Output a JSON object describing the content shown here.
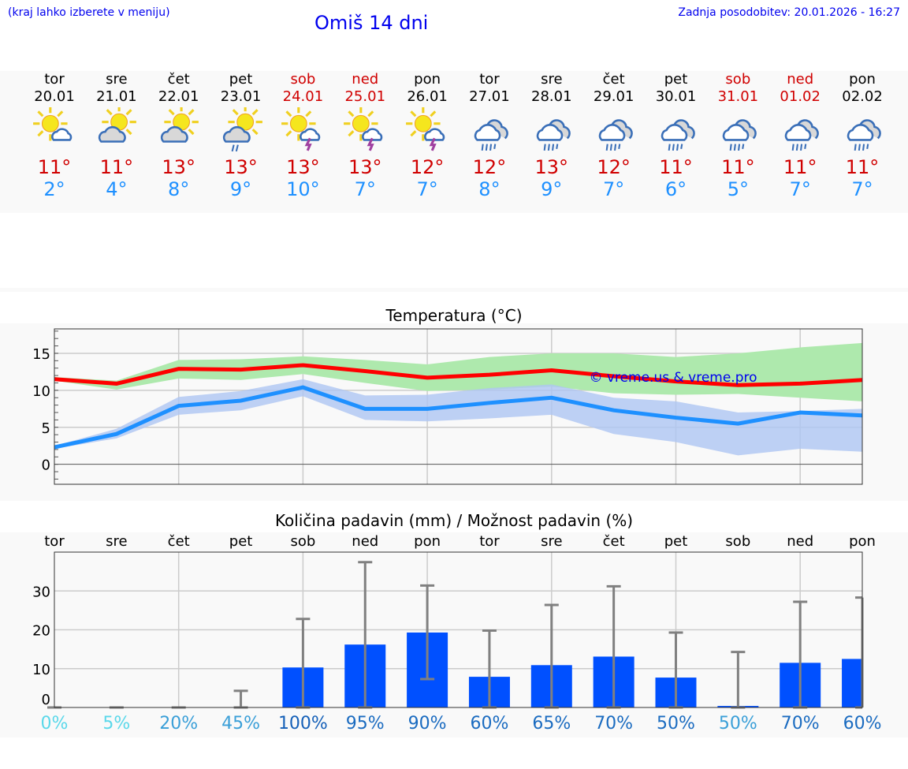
{
  "header": {
    "hint": "(kraj lahko izberete v meniju)",
    "title": "Omiš 14 dni",
    "updated": "Zadnja posodobitev: 20.01.2026 - 16:27"
  },
  "days": [
    {
      "name": "tor",
      "date": "20.01",
      "icon": "sun-cloud",
      "max": "11°",
      "min": "2°",
      "weekend": false
    },
    {
      "name": "sre",
      "date": "21.01",
      "icon": "sun-cloud",
      "max": "11°",
      "min": "4°",
      "weekend": false
    },
    {
      "name": "čet",
      "date": "22.01",
      "icon": "sun-cloud",
      "max": "13°",
      "min": "8°",
      "weekend": false
    },
    {
      "name": "pet",
      "date": "23.01",
      "icon": "sun-cloud-rain",
      "max": "13°",
      "min": "9°",
      "weekend": false
    },
    {
      "name": "sob",
      "date": "24.01",
      "icon": "sun-cloud-thunder",
      "max": "13°",
      "min": "10°",
      "weekend": true
    },
    {
      "name": "ned",
      "date": "25.01",
      "icon": "sun-cloud-thunder",
      "max": "13°",
      "min": "7°",
      "weekend": true
    },
    {
      "name": "pon",
      "date": "26.01",
      "icon": "sun-cloud-thunder",
      "max": "12°",
      "min": "7°",
      "weekend": false
    },
    {
      "name": "tor",
      "date": "27.01",
      "icon": "cloud-rain",
      "max": "12°",
      "min": "8°",
      "weekend": false
    },
    {
      "name": "sre",
      "date": "28.01",
      "icon": "cloud-rain",
      "max": "13°",
      "min": "9°",
      "weekend": false
    },
    {
      "name": "čet",
      "date": "29.01",
      "icon": "cloud-rain",
      "max": "12°",
      "min": "7°",
      "weekend": false
    },
    {
      "name": "pet",
      "date": "30.01",
      "icon": "cloud-rain",
      "max": "11°",
      "min": "6°",
      "weekend": false
    },
    {
      "name": "sob",
      "date": "31.01",
      "icon": "cloud-rain",
      "max": "11°",
      "min": "5°",
      "weekend": true
    },
    {
      "name": "ned",
      "date": "01.02",
      "icon": "cloud-rain",
      "max": "11°",
      "min": "7°",
      "weekend": true
    },
    {
      "name": "pon",
      "date": "02.02",
      "icon": "cloud-rain",
      "max": "11°",
      "min": "7°",
      "weekend": false
    }
  ],
  "colors": {
    "weekend": "#d00000",
    "weekday": "#000000",
    "max_line": "#ff0000",
    "min_line": "#1e90ff",
    "max_band": "#aee9ad",
    "min_band": "#aec6f2",
    "bar": "#0050ff",
    "error": "#808080"
  },
  "chart_data": [
    {
      "type": "line",
      "title": "Temperatura (°C)",
      "watermark": "© vreme.us & vreme.pro",
      "ylim": [
        -2.7,
        18.3
      ],
      "yticks": [
        0,
        5,
        10,
        15
      ],
      "series": [
        {
          "name": "max",
          "values": [
            11.5,
            10.9,
            12.9,
            12.8,
            13.4,
            12.6,
            11.7,
            12.1,
            12.7,
            11.9,
            11.2,
            10.7,
            10.9,
            11.4
          ],
          "band_low": [
            11.3,
            10.1,
            11.6,
            11.4,
            12.2,
            11.0,
            9.9,
            10.1,
            10.5,
            9.6,
            9.4,
            9.5,
            9.0,
            8.5
          ],
          "band_high": [
            11.8,
            11.3,
            14.1,
            14.2,
            14.6,
            14.1,
            13.5,
            14.5,
            15.0,
            15.0,
            14.5,
            15.0,
            15.8,
            16.4
          ]
        },
        {
          "name": "min",
          "values": [
            2.3,
            4.1,
            7.9,
            8.6,
            10.4,
            7.5,
            7.5,
            8.3,
            9.0,
            7.3,
            6.3,
            5.5,
            7.0,
            6.6
          ],
          "band_low": [
            2.1,
            3.5,
            6.7,
            7.3,
            9.2,
            6.0,
            5.8,
            6.2,
            6.7,
            4.1,
            3.0,
            1.2,
            2.1,
            1.7
          ],
          "band_high": [
            2.5,
            4.8,
            9.1,
            9.9,
            11.5,
            9.3,
            9.4,
            10.3,
            10.8,
            9.0,
            8.5,
            7.0,
            7.2,
            7.5
          ]
        }
      ]
    },
    {
      "type": "bar",
      "title": "Količina padavin (mm) / Možnost padavin (%)",
      "categories": [
        "tor",
        "sre",
        "čet",
        "pet",
        "sob",
        "ned",
        "pon",
        "tor",
        "sre",
        "čet",
        "pet",
        "sob",
        "ned",
        "pon"
      ],
      "ylim": [
        0,
        40
      ],
      "yticks": [
        0,
        10,
        20,
        30
      ],
      "values": [
        0,
        0,
        0,
        0,
        10.3,
        16.2,
        19.3,
        7.9,
        10.9,
        13.1,
        7.7,
        0.4,
        11.5,
        12.5
      ],
      "error_low": [
        0,
        0,
        0,
        0,
        0,
        0,
        7.3,
        0,
        0,
        0,
        0,
        0,
        0,
        0
      ],
      "error_high": [
        0,
        0,
        0,
        4.3,
        22.8,
        37.4,
        31.4,
        19.8,
        26.4,
        31.2,
        19.3,
        14.3,
        27.2,
        28.3
      ],
      "probability": [
        "0%",
        "5%",
        "20%",
        "45%",
        "100%",
        "95%",
        "90%",
        "60%",
        "65%",
        "70%",
        "50%",
        "50%",
        "70%",
        "60%"
      ],
      "probability_colors": [
        "#5ad8ea",
        "#5ad8ea",
        "#3a9fd8",
        "#3a9fd8",
        "#1560b8",
        "#1a6bc0",
        "#1a6bc0",
        "#1a6bc0",
        "#1a6bc0",
        "#1a6bc0",
        "#1a6bc0",
        "#3a9fd8",
        "#1a6bc0",
        "#1a6bc0"
      ]
    }
  ]
}
